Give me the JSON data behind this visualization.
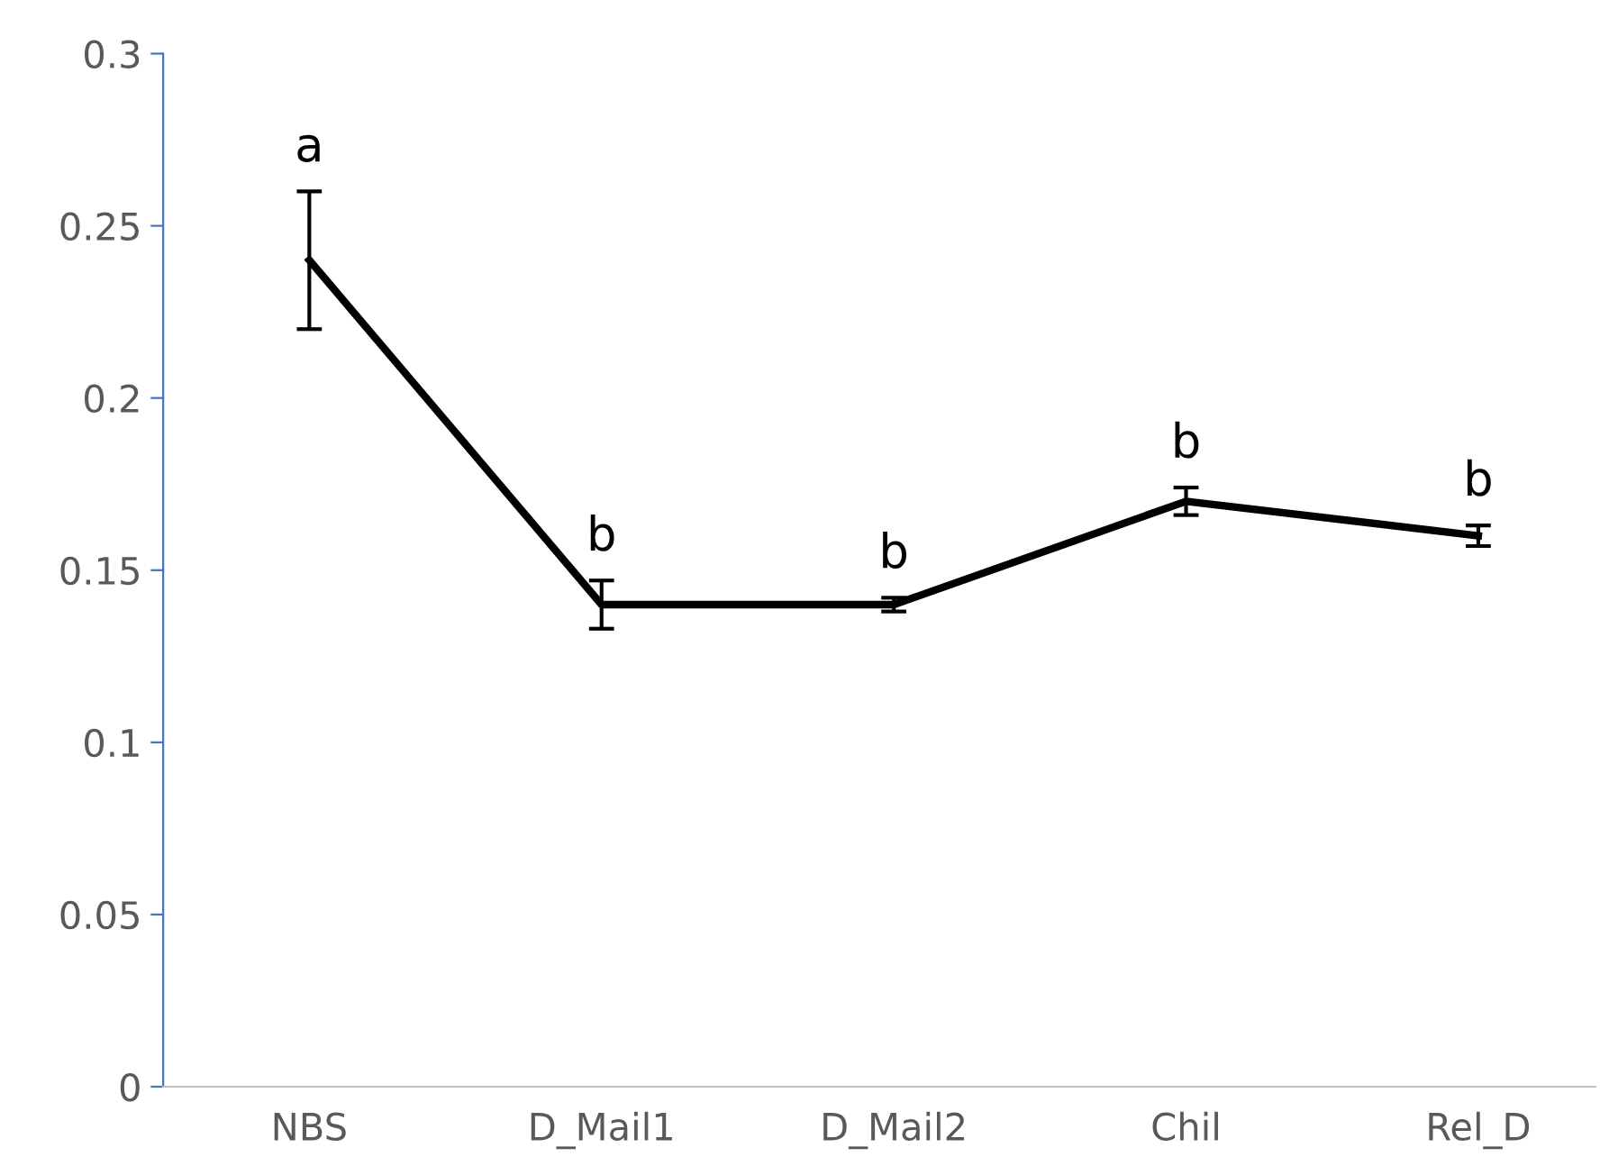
{
  "chart_data": {
    "type": "line",
    "categories": [
      "NBS",
      "D_Mail1",
      "D_Mail2",
      "Chil",
      "Rel_D"
    ],
    "series": [
      {
        "color": "#000000",
        "values": [
          0.24,
          0.14,
          0.14,
          0.17,
          0.16
        ],
        "errors": [
          0.02,
          0.007,
          0.002,
          0.004,
          0.003
        ]
      }
    ],
    "ylim": [
      0,
      0.3
    ],
    "yticks": [
      0,
      0.05,
      0.1,
      0.15,
      0.2,
      0.25,
      0.3
    ],
    "grid": false,
    "legend": false,
    "marker": "none",
    "line_style": "solid",
    "annotations": [
      {
        "text": "a",
        "x": "NBS",
        "y": 0.26
      },
      {
        "text": "b",
        "x": "D_Mail1",
        "y": 0.147
      },
      {
        "text": "b",
        "x": "D_Mail2",
        "y": 0.142
      },
      {
        "text": "b",
        "x": "Chil",
        "y": 0.174
      },
      {
        "text": "b",
        "x": "Rel_D",
        "y": 0.163
      }
    ]
  }
}
